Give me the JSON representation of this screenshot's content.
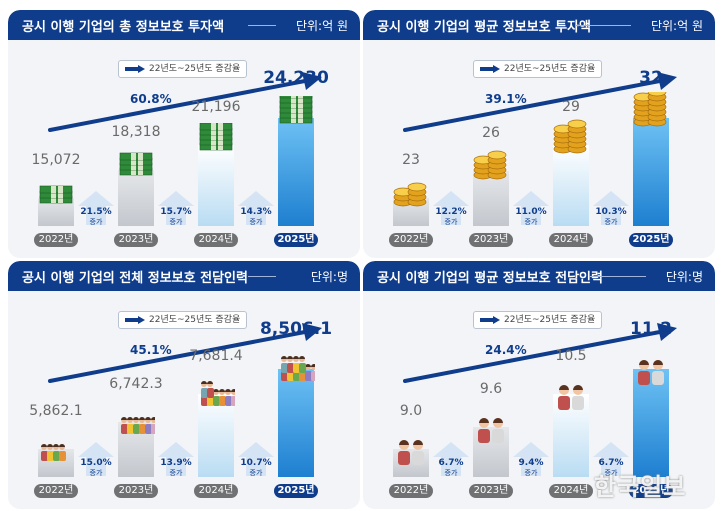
{
  "chart_data": [
    {
      "type": "bar",
      "title": "공시 이행 기업의 총 정보보호 투자액",
      "unit": "단위:억 원",
      "legend": "22년도~25년도 증감율",
      "overall_growth": "60.8%",
      "categories": [
        "2022년",
        "2023년",
        "2024년",
        "2025년"
      ],
      "values": [
        15072,
        18318,
        21196,
        24230
      ],
      "value_labels": [
        "15,072",
        "18,318",
        "21,196",
        "24,230"
      ],
      "changes": [
        "21.5%",
        "15.7%",
        "14.3%"
      ],
      "change_label": "증가",
      "icon": "money-stack-icon"
    },
    {
      "type": "bar",
      "title": "공시 이행 기업의 평균 정보보호 투자액",
      "unit": "단위:억 원",
      "legend": "22년도~25년도 증감율",
      "overall_growth": "39.1%",
      "categories": [
        "2022년",
        "2023년",
        "2024년",
        "2025년"
      ],
      "values": [
        23,
        26,
        29,
        32
      ],
      "value_labels": [
        "23",
        "26",
        "29",
        "32"
      ],
      "changes": [
        "12.2%",
        "11.0%",
        "10.3%"
      ],
      "change_label": "증가",
      "icon": "coin-stack-icon"
    },
    {
      "type": "bar",
      "title": "공시 이행 기업의 전체 정보보호 전담인력",
      "unit": "단위:명",
      "legend": "22년도~25년도 증감율",
      "overall_growth": "45.1%",
      "categories": [
        "2022년",
        "2023년",
        "2024년",
        "2025년"
      ],
      "values": [
        5862.1,
        6742.3,
        7681.4,
        8506.1
      ],
      "value_labels": [
        "5,862.1",
        "6,742.3",
        "7,681.4",
        "8,506.1"
      ],
      "changes": [
        "15.0%",
        "13.9%",
        "10.7%"
      ],
      "change_label": "증가",
      "icon": "people-group-icon"
    },
    {
      "type": "bar",
      "title": "공시 이행 기업의 평균 정보보호 전담인력",
      "unit": "단위:명",
      "legend": "22년도~25년도 증감율",
      "overall_growth": "24.4%",
      "categories": [
        "2022년",
        "2023년",
        "2024년",
        "2025년"
      ],
      "values": [
        9.0,
        9.6,
        10.5,
        11.2
      ],
      "value_labels": [
        "9.0",
        "9.6",
        "10.5",
        "11.2"
      ],
      "changes": [
        "6.7%",
        "9.4%",
        "6.7%"
      ],
      "change_label": "증가",
      "icon": "people-pair-icon"
    }
  ],
  "watermark": "한국일보",
  "colors": {
    "navy": "#0f3d8c",
    "bar_gray": "#c8ccd2",
    "bar_light_blue": "#b9dcf3",
    "bar_blue": "#1e7fd0",
    "panel_bg": "#f2f4f7"
  }
}
